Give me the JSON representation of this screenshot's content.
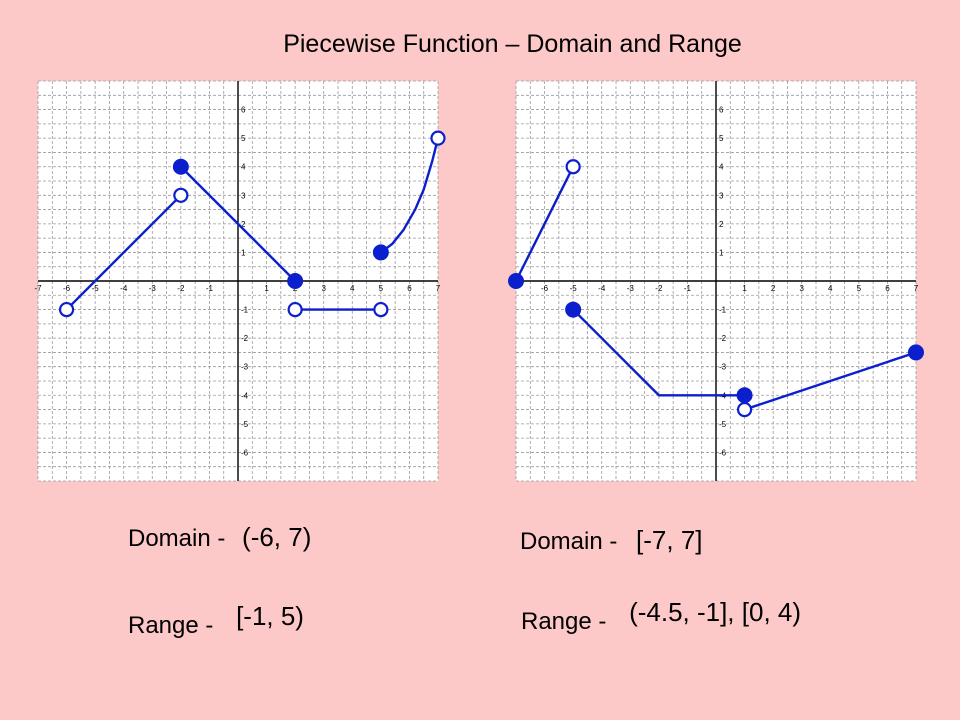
{
  "title": "Piecewise Function – Domain and Range",
  "colors": {
    "background": "#fdc8c8",
    "line": "#0b1fcc",
    "grid": "#9a9a9a",
    "plot_bg": "#ffffff"
  },
  "chart_data": [
    {
      "type": "line",
      "xlim": [
        -7,
        7
      ],
      "ylim": [
        -7,
        7
      ],
      "grid": true,
      "x_ticks": [
        "-7",
        "-6",
        "-5",
        "-4",
        "-3",
        "-2",
        "-1",
        "1",
        "2",
        "3",
        "4",
        "5",
        "6",
        "7"
      ],
      "y_ticks": [
        "6",
        "5",
        "4",
        "3",
        "2",
        "1",
        "-1",
        "-2",
        "-3",
        "-4",
        "-5",
        "-6"
      ],
      "segments": [
        {
          "points": [
            [
              -6,
              -1
            ],
            [
              -2,
              3
            ]
          ]
        },
        {
          "points": [
            [
              -2,
              4
            ],
            [
              2,
              0
            ]
          ]
        },
        {
          "points": [
            [
              2,
              -1
            ],
            [
              5,
              -1
            ]
          ]
        },
        {
          "points": [
            [
              5,
              1
            ],
            [
              5.4,
              1.3
            ],
            [
              5.8,
              1.8
            ],
            [
              6.2,
              2.5
            ],
            [
              6.5,
              3.2
            ],
            [
              6.8,
              4.2
            ],
            [
              7,
              5
            ]
          ]
        }
      ],
      "endpoints": [
        {
          "x": -6,
          "y": -1,
          "closed": false
        },
        {
          "x": -2,
          "y": 3,
          "closed": false
        },
        {
          "x": -2,
          "y": 4,
          "closed": true
        },
        {
          "x": 2,
          "y": 0,
          "closed": true
        },
        {
          "x": 2,
          "y": -1,
          "closed": false
        },
        {
          "x": 5,
          "y": -1,
          "closed": false
        },
        {
          "x": 5,
          "y": 1,
          "closed": true
        },
        {
          "x": 7,
          "y": 5,
          "closed": false
        }
      ],
      "domain_label": "Domain -",
      "domain_value": "(-6, 7)",
      "range_label": "Range -",
      "range_value": "[-1, 5)"
    },
    {
      "type": "line",
      "xlim": [
        -7,
        7
      ],
      "ylim": [
        -7,
        7
      ],
      "grid": true,
      "x_ticks": [
        "-6",
        "-5",
        "-4",
        "-3",
        "-2",
        "-1",
        "1",
        "2",
        "3",
        "4",
        "5",
        "6",
        "7"
      ],
      "y_ticks": [
        "6",
        "5",
        "4",
        "3",
        "2",
        "1",
        "-1",
        "-2",
        "-3",
        "-4",
        "-5",
        "-6"
      ],
      "segments": [
        {
          "points": [
            [
              -7,
              0
            ],
            [
              -5,
              4
            ]
          ]
        },
        {
          "points": [
            [
              -5,
              -1
            ],
            [
              -2,
              -4
            ],
            [
              1,
              -4
            ]
          ]
        },
        {
          "points": [
            [
              1,
              -4.5
            ],
            [
              7,
              -2.5
            ]
          ]
        }
      ],
      "endpoints": [
        {
          "x": -7,
          "y": 0,
          "closed": true
        },
        {
          "x": -5,
          "y": 4,
          "closed": false
        },
        {
          "x": -5,
          "y": -1,
          "closed": true
        },
        {
          "x": 1,
          "y": -4,
          "closed": true
        },
        {
          "x": 1,
          "y": -4.5,
          "closed": false
        },
        {
          "x": 7,
          "y": -2.5,
          "closed": true
        }
      ],
      "domain_label": "Domain -",
      "domain_value": "[-7, 7]",
      "range_label": "Range -",
      "range_value": "(-4.5, -1], [0, 4)"
    }
  ]
}
